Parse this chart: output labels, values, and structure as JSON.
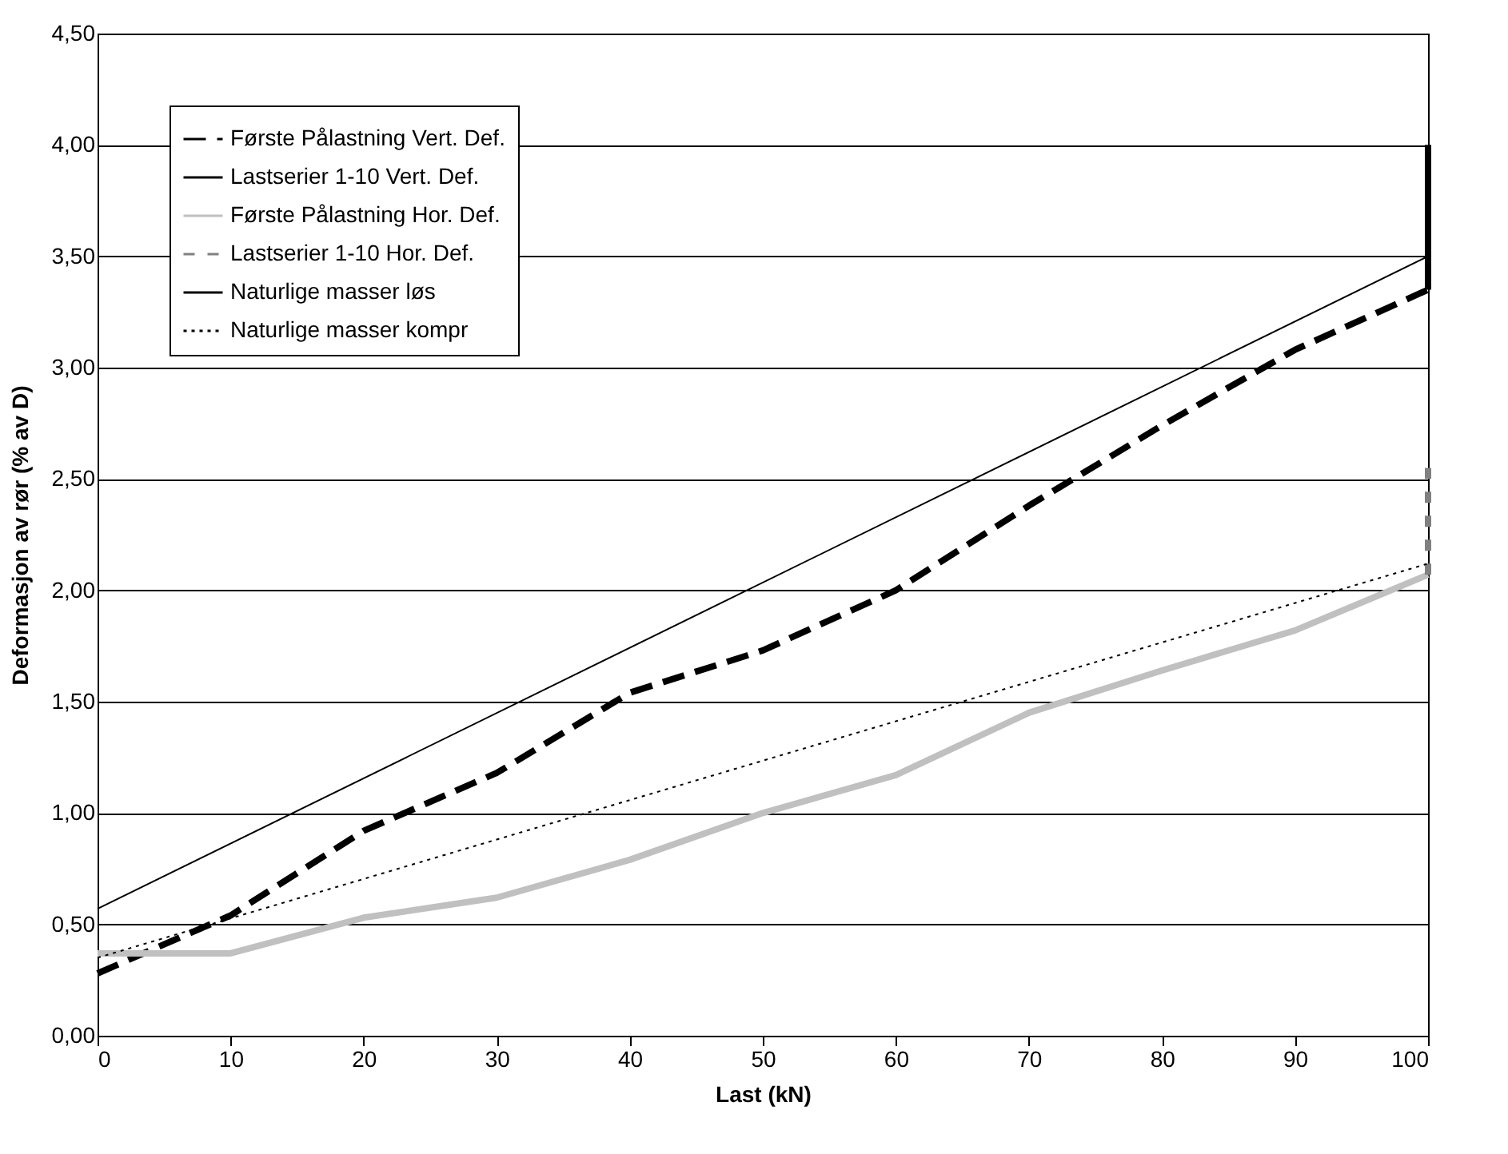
{
  "chart_data": {
    "type": "line",
    "xlabel": "Last (kN)",
    "ylabel": "Deformasjon av rør (% av D)",
    "xlim": [
      0,
      100
    ],
    "xticks": [
      0,
      10,
      20,
      30,
      40,
      50,
      60,
      70,
      80,
      90,
      100
    ],
    "ylim": [
      0,
      4.5
    ],
    "yticks": [
      {
        "value": 0,
        "label": "0,00"
      },
      {
        "value": 0.5,
        "label": "0,50"
      },
      {
        "value": 1,
        "label": "1,00"
      },
      {
        "value": 1.5,
        "label": "1,50"
      },
      {
        "value": 2,
        "label": "2,00"
      },
      {
        "value": 2.5,
        "label": "2,50"
      },
      {
        "value": 3,
        "label": "3,00"
      },
      {
        "value": 3.5,
        "label": "3,50"
      },
      {
        "value": 4,
        "label": "4,00"
      },
      {
        "value": 4.5,
        "label": "4,50"
      }
    ],
    "grid": "y",
    "legend": "top left",
    "marker": "none",
    "series": [
      {
        "name": "Første Pålastning Vert. Def.",
        "color": "#000000",
        "line_style": "dashed",
        "x": [
          0,
          10,
          20,
          30,
          40,
          50,
          60,
          70,
          80,
          90,
          100
        ],
        "values": [
          0.28,
          0.54,
          0.92,
          1.18,
          1.54,
          1.73,
          2.0,
          2.38,
          2.74,
          3.08,
          3.35
        ]
      },
      {
        "name": "Lastserier 1-10 Vert. Def.",
        "color": "#000000",
        "line_style": "solid",
        "x": [
          100,
          100
        ],
        "values": [
          3.35,
          4.0
        ]
      },
      {
        "name": "Første Pålastning Hor. Def.",
        "color": "#c0c0c0",
        "line_style": "solid",
        "x": [
          0,
          10,
          20,
          30,
          40,
          50,
          60,
          70,
          80,
          90,
          100
        ],
        "values": [
          0.37,
          0.37,
          0.53,
          0.62,
          0.79,
          1.0,
          1.17,
          1.45,
          1.64,
          1.82,
          2.07
        ]
      },
      {
        "name": "Lastserier 1-10 Hor. Def.",
        "color": "#808080",
        "line_style": "dashed",
        "x": [
          100,
          100
        ],
        "values": [
          2.07,
          2.55
        ]
      },
      {
        "name": "Naturlige masser løs",
        "color": "#000000",
        "line_style": "solid",
        "x": [
          0,
          100
        ],
        "values": [
          0.57,
          3.5
        ]
      },
      {
        "name": "Naturlige masser kompr",
        "color": "#000000",
        "line_style": "dotted",
        "x": [
          0,
          100
        ],
        "values": [
          0.35,
          2.12
        ]
      }
    ]
  }
}
